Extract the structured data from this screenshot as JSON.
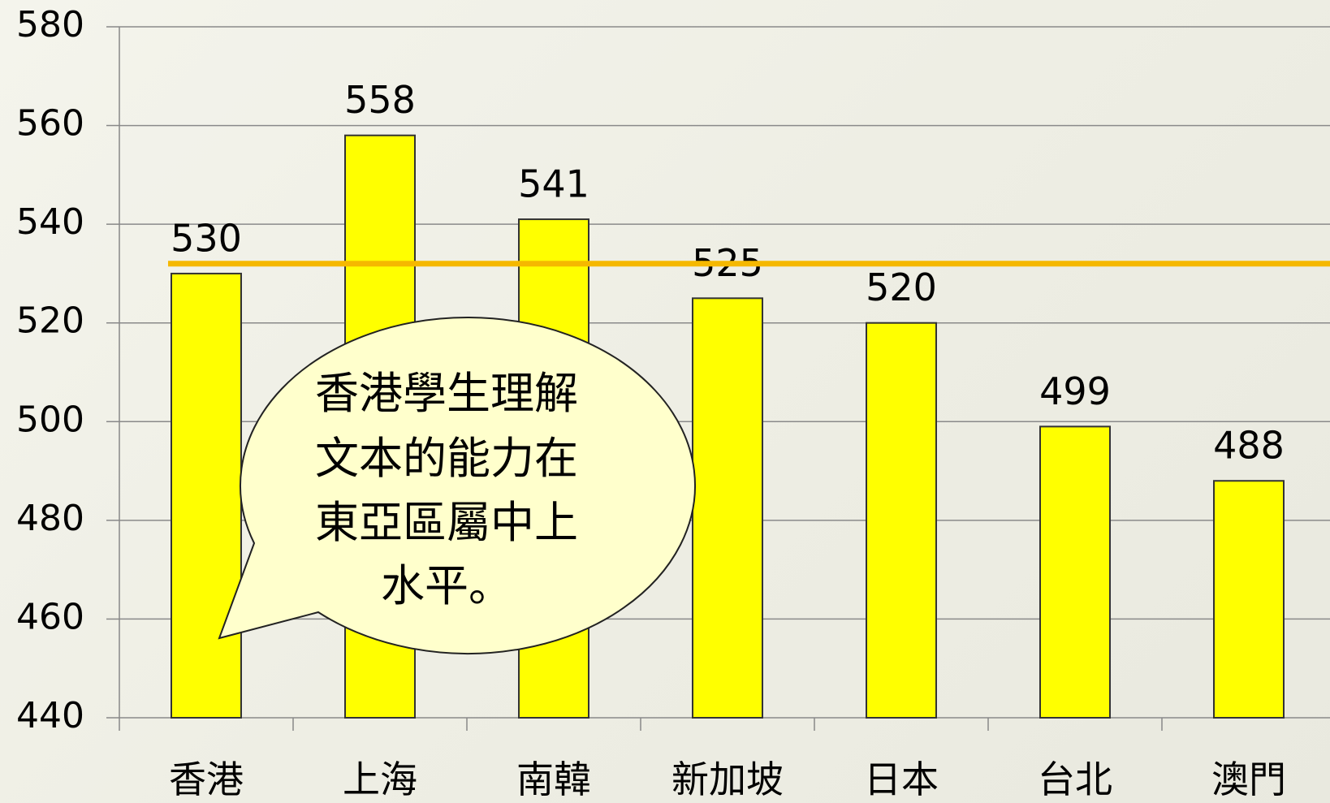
{
  "chart_data": {
    "type": "bar",
    "categories": [
      "香港",
      "上海",
      "南韓",
      "新加坡",
      "日本",
      "台北",
      "澳門"
    ],
    "values": [
      530,
      558,
      541,
      525,
      520,
      499,
      488
    ],
    "color": "#ffff00",
    "ylim": [
      440,
      580
    ],
    "yticks": [
      440,
      460,
      480,
      500,
      520,
      540,
      560,
      580
    ],
    "grid": true,
    "reference_line": {
      "value": 532,
      "color": "#f5b800"
    },
    "annotation": [
      "香港學生理解",
      "文本的能力在",
      "東亞區屬中上",
      "水平。"
    ]
  }
}
